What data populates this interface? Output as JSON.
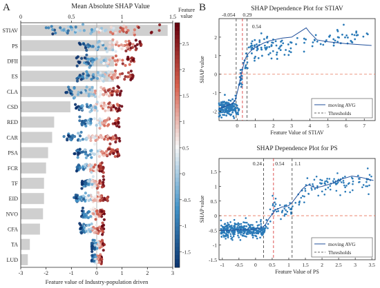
{
  "panel_labels": [
    "A",
    "B"
  ],
  "chart_data": [
    {
      "type": "bar",
      "role": "mean-abs-shap",
      "title": "Mean Absolute SHAP Value",
      "categories": [
        "STIAV",
        "PS",
        "DFII",
        "ES",
        "CLA",
        "CSD",
        "RED",
        "CAR",
        "PSA",
        "FCR",
        "TF",
        "EID",
        "NVO",
        "CFA",
        "TA",
        "LUD"
      ],
      "values": [
        1.45,
        0.92,
        0.92,
        0.92,
        0.72,
        0.49,
        0.33,
        0.31,
        0.27,
        0.25,
        0.23,
        0.23,
        0.22,
        0.19,
        0.09,
        0.07
      ],
      "xlim": [
        0,
        1.5
      ],
      "xticks": [
        0,
        0.5,
        1,
        1.5
      ],
      "xtick_labels": [
        "0",
        "0.5",
        "1",
        "1.5"
      ]
    },
    {
      "type": "scatter",
      "role": "shap-beeswarm",
      "xlabel": "Feature value of Industry-population driven",
      "xlim": [
        -3,
        3
      ],
      "xticks": [
        -3,
        -2,
        -1,
        0,
        1,
        2,
        3
      ],
      "features": [
        {
          "name": "STIAV",
          "min": -2.2,
          "max": 2.6
        },
        {
          "name": "PS",
          "min": -0.7,
          "max": 1.8
        },
        {
          "name": "DFII",
          "min": -0.8,
          "max": 1.5
        },
        {
          "name": "ES",
          "min": -0.8,
          "max": 1.5
        },
        {
          "name": "CLA",
          "min": -1.3,
          "max": 1.0
        },
        {
          "name": "CSD",
          "min": -0.9,
          "max": 1.0
        },
        {
          "name": "RED",
          "min": -0.7,
          "max": 0.9
        },
        {
          "name": "CAR",
          "min": -1.3,
          "max": 1.0
        },
        {
          "name": "PSA",
          "min": -0.9,
          "max": 0.9
        },
        {
          "name": "FCR",
          "min": -0.8,
          "max": 0.3
        },
        {
          "name": "TF",
          "min": -0.6,
          "max": 0.3
        },
        {
          "name": "EID",
          "min": -0.9,
          "max": 0.5
        },
        {
          "name": "NVO",
          "min": -0.6,
          "max": 0.3
        },
        {
          "name": "CFA",
          "min": -0.7,
          "max": 0.3
        },
        {
          "name": "TA",
          "min": -0.2,
          "max": 0.3
        },
        {
          "name": "LUD",
          "min": -0.2,
          "max": 0.2
        }
      ]
    },
    {
      "type": "colorbar",
      "title": "Feature value",
      "range": [
        -1.8,
        2.9
      ],
      "ticks": [
        -1.5,
        -1,
        -0.5,
        0,
        0.5,
        1,
        1.5,
        2,
        2.5
      ],
      "tick_labels": [
        "-1.5",
        "-1",
        "-0.5",
        "0",
        "0.5",
        "1",
        "1.5",
        "2",
        "2.5"
      ]
    },
    {
      "type": "scatter",
      "role": "dependence-stiav",
      "title": "SHAP Dependence Plot for STIAV",
      "xlabel": "Feature Value of STIAV",
      "ylabel": "SHAP value",
      "xlim": [
        -1,
        7.6
      ],
      "ylim": [
        -2.5,
        3
      ],
      "xticks": [
        0,
        1,
        2,
        3,
        4,
        5,
        6,
        7
      ],
      "yticks": [
        -2,
        -1,
        0,
        1,
        2
      ],
      "thresholds": [
        {
          "x": -0.054,
          "label": "-0.054",
          "color": "#333333"
        },
        {
          "x": 0.29,
          "label": "0.29",
          "color": "#d62728"
        },
        {
          "x": 0.54,
          "label": "0.54",
          "color": "#333333"
        }
      ],
      "moving_avg": {
        "x": [
          -1,
          -0.6,
          -0.3,
          -0.1,
          0.0,
          0.1,
          0.2,
          0.3,
          0.4,
          0.5,
          0.6,
          0.7,
          0.8,
          1.0,
          1.2,
          1.5,
          1.8,
          2.0,
          2.5,
          3.0,
          3.4,
          3.8,
          4.0,
          4.4,
          5.0,
          6.0,
          7.4
        ],
        "y": [
          -1.85,
          -1.7,
          -1.6,
          -1.4,
          -1.0,
          -0.6,
          -0.1,
          0.3,
          0.7,
          0.95,
          1.1,
          1.2,
          1.3,
          1.45,
          1.55,
          1.7,
          1.8,
          1.85,
          1.95,
          2.0,
          2.25,
          2.5,
          2.25,
          1.85,
          1.75,
          1.65,
          1.55
        ]
      },
      "legend": [
        "moving AVG",
        "Thresholds"
      ]
    },
    {
      "type": "scatter",
      "role": "dependence-ps",
      "title": "SHAP Dependence Plot for PS",
      "xlabel": "Feature Value of PS",
      "ylabel": "SHAP value",
      "xlim": [
        -1.1,
        3.6
      ],
      "ylim": [
        -1.5,
        1.95
      ],
      "xticks": [
        -1,
        -0.5,
        0,
        0.5,
        1,
        1.5,
        2,
        2.5,
        3,
        3.5
      ],
      "xtick_labels": [
        "-1",
        "-0.5",
        "0",
        "0.5",
        "1",
        "1.5",
        "2",
        "2.5",
        "3",
        "3.5"
      ],
      "yticks": [
        -1.5,
        -1,
        -0.5,
        0,
        0.5,
        1,
        1.5
      ],
      "ytick_labels": [
        "-1.5",
        "-1",
        "-0.5",
        "0",
        "0.5",
        "1",
        "1.5"
      ],
      "thresholds": [
        {
          "x": 0.24,
          "label": "0.24",
          "color": "#333333"
        },
        {
          "x": 0.54,
          "label": "0.54",
          "color": "#d62728"
        },
        {
          "x": 1.1,
          "label": "1.1",
          "color": "#333333"
        }
      ],
      "moving_avg": {
        "x": [
          -1.05,
          -0.8,
          -0.5,
          -0.2,
          0.0,
          0.2,
          0.3,
          0.4,
          0.5,
          0.6,
          0.7,
          0.8,
          0.9,
          1.0,
          1.1,
          1.2,
          1.3,
          1.4,
          1.5,
          1.6,
          1.7,
          1.8,
          2.0,
          2.3,
          2.6,
          2.9,
          3.2,
          3.55
        ],
        "y": [
          -0.5,
          -0.5,
          -0.48,
          -0.47,
          -0.45,
          -0.4,
          -0.3,
          -0.1,
          0.05,
          0.2,
          0.25,
          0.3,
          0.3,
          0.35,
          0.45,
          0.6,
          0.75,
          0.9,
          1.0,
          1.05,
          1.0,
          0.95,
          1.0,
          1.1,
          1.25,
          1.35,
          1.3,
          1.2
        ]
      },
      "legend": [
        "moving AVG",
        "Thresholds"
      ]
    }
  ]
}
